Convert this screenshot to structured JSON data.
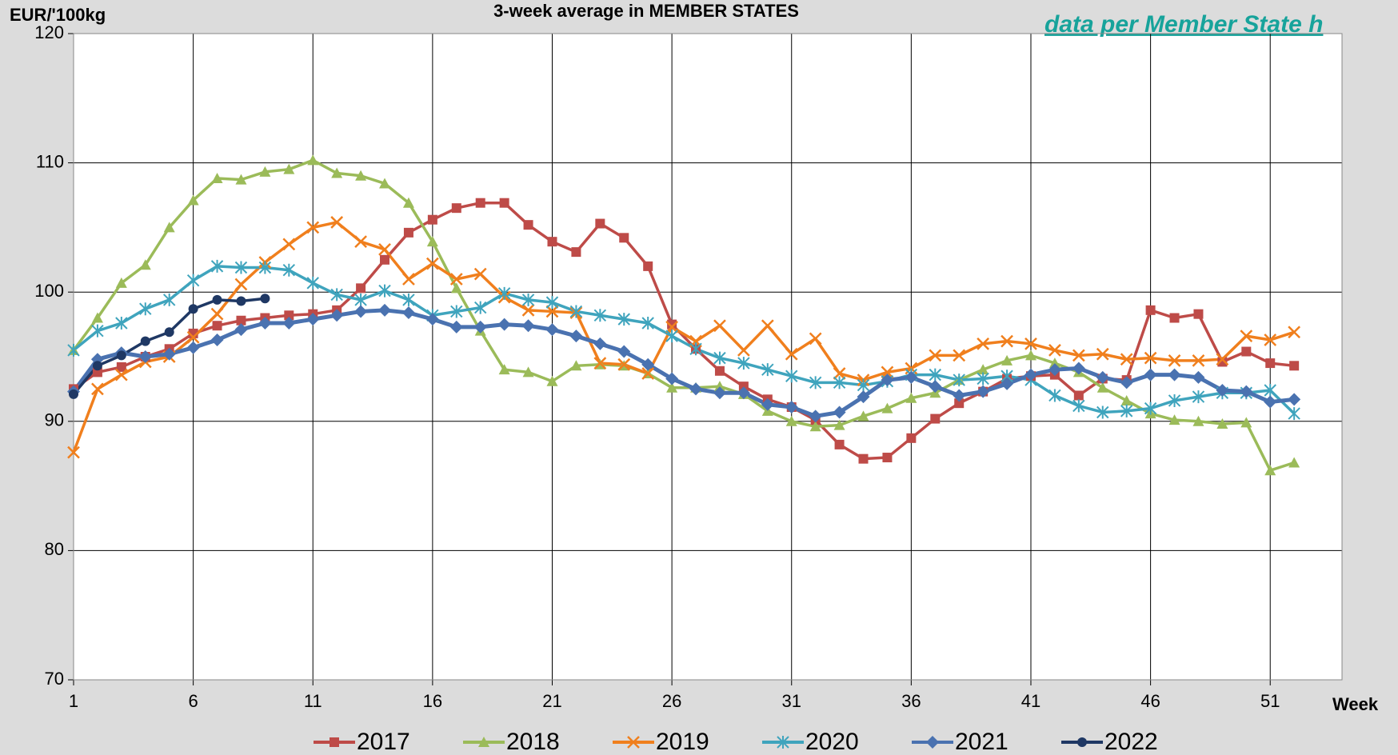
{
  "chart_data": {
    "type": "line",
    "title": "3-week average in MEMBER STATES",
    "y_label": "EUR/'100kg",
    "x_label": "Week",
    "link": "data per Member State h",
    "x": [
      1,
      2,
      3,
      4,
      5,
      6,
      7,
      8,
      9,
      10,
      11,
      12,
      13,
      14,
      15,
      16,
      17,
      18,
      19,
      20,
      21,
      22,
      23,
      24,
      25,
      26,
      27,
      28,
      29,
      30,
      31,
      32,
      33,
      34,
      35,
      36,
      37,
      38,
      39,
      40,
      41,
      42,
      43,
      44,
      45,
      46,
      47,
      48,
      49,
      50,
      51,
      52
    ],
    "xlim": [
      1,
      54
    ],
    "xticks": [
      1,
      6,
      11,
      16,
      21,
      26,
      31,
      36,
      41,
      46,
      51
    ],
    "ylim": [
      70,
      120
    ],
    "yticks": [
      70,
      80,
      90,
      100,
      110,
      120
    ],
    "grid": true,
    "legend": "bottom",
    "series": [
      {
        "name": "2017",
        "color": "#be4b48",
        "marker": "square",
        "values": [
          92.5,
          93.8,
          94.2,
          95.0,
          95.6,
          96.8,
          97.4,
          97.8,
          98.0,
          98.2,
          98.3,
          98.6,
          100.3,
          102.5,
          104.6,
          105.6,
          106.5,
          106.9,
          106.9,
          105.2,
          103.9,
          103.1,
          105.3,
          104.2,
          102.0,
          97.5,
          95.6,
          93.9,
          92.7,
          91.7,
          91.1,
          90.1,
          88.2,
          87.1,
          87.2,
          88.7,
          90.2,
          91.4,
          92.3,
          93.3,
          93.5,
          93.6,
          92.0,
          93.3,
          93.2,
          98.6,
          98.0,
          98.3,
          94.6,
          95.4,
          94.5,
          94.3
        ]
      },
      {
        "name": "2018",
        "color": "#9bbb59",
        "marker": "triangle",
        "values": [
          95.5,
          98.0,
          100.7,
          102.1,
          105.0,
          107.1,
          108.8,
          108.7,
          109.3,
          109.5,
          110.2,
          109.2,
          109.0,
          108.4,
          106.9,
          103.9,
          100.3,
          97.0,
          94.0,
          93.8,
          93.1,
          94.3,
          94.4,
          94.3,
          93.7,
          92.6,
          92.6,
          92.7,
          92.1,
          90.8,
          90.0,
          89.6,
          89.7,
          90.4,
          91.0,
          91.8,
          92.2,
          93.2,
          94.0,
          94.7,
          95.1,
          94.5,
          93.8,
          92.6,
          91.6,
          90.6,
          90.1,
          90.0,
          89.8,
          89.9,
          86.2,
          86.8
        ]
      },
      {
        "name": "2019",
        "color": "#f07f1d",
        "marker": "x",
        "values": [
          87.6,
          92.5,
          93.6,
          94.6,
          95.0,
          96.5,
          98.3,
          100.6,
          102.3,
          103.7,
          105.0,
          105.4,
          103.9,
          103.3,
          101.0,
          102.2,
          101.0,
          101.4,
          99.6,
          98.6,
          98.5,
          98.4,
          94.5,
          94.4,
          93.7,
          97.3,
          96.2,
          97.4,
          95.5,
          97.4,
          95.2,
          96.4,
          93.7,
          93.2,
          93.8,
          94.1,
          95.1,
          95.1,
          96.0,
          96.2,
          96.0,
          95.5,
          95.1,
          95.2,
          94.8,
          94.9,
          94.7,
          94.7,
          94.8,
          96.6,
          96.3,
          96.9
        ]
      },
      {
        "name": "2020",
        "color": "#3fa4bd",
        "marker": "star",
        "values": [
          95.5,
          97.0,
          97.6,
          98.7,
          99.4,
          100.9,
          102.0,
          101.9,
          101.9,
          101.7,
          100.7,
          99.8,
          99.4,
          100.1,
          99.4,
          98.2,
          98.5,
          98.8,
          99.9,
          99.4,
          99.2,
          98.5,
          98.2,
          97.9,
          97.6,
          96.6,
          95.6,
          94.9,
          94.5,
          94.0,
          93.5,
          93.0,
          93.0,
          92.8,
          93.1,
          93.6,
          93.6,
          93.2,
          93.3,
          93.5,
          93.2,
          92.0,
          91.2,
          90.7,
          90.8,
          91.0,
          91.6,
          91.9,
          92.2,
          92.2,
          92.4,
          90.6
        ]
      },
      {
        "name": "2021",
        "color": "#4a72b0",
        "marker": "diamond",
        "values": [
          92.3,
          94.8,
          95.3,
          95.0,
          95.2,
          95.7,
          96.3,
          97.1,
          97.6,
          97.6,
          97.9,
          98.2,
          98.5,
          98.6,
          98.4,
          97.9,
          97.3,
          97.3,
          97.5,
          97.4,
          97.1,
          96.6,
          96.0,
          95.4,
          94.4,
          93.3,
          92.5,
          92.2,
          92.2,
          91.3,
          91.1,
          90.4,
          90.7,
          91.9,
          93.2,
          93.4,
          92.7,
          92.0,
          92.3,
          92.9,
          93.6,
          94.0,
          94.1,
          93.4,
          93.0,
          93.6,
          93.6,
          93.4,
          92.4,
          92.3,
          91.5,
          91.7
        ]
      },
      {
        "name": "2022",
        "color": "#1f3864",
        "marker": "circle",
        "values": [
          92.1,
          94.3,
          95.1,
          96.2,
          96.9,
          98.7,
          99.4,
          99.3,
          99.5,
          null,
          null,
          null,
          null,
          null,
          null,
          null,
          null,
          null,
          null,
          null,
          null,
          null,
          null,
          null,
          null,
          null,
          null,
          null,
          null,
          null,
          null,
          null,
          null,
          null,
          null,
          null,
          null,
          null,
          null,
          null,
          null,
          null,
          null,
          null,
          null,
          null,
          null,
          null,
          null,
          null,
          null,
          null
        ]
      }
    ]
  }
}
